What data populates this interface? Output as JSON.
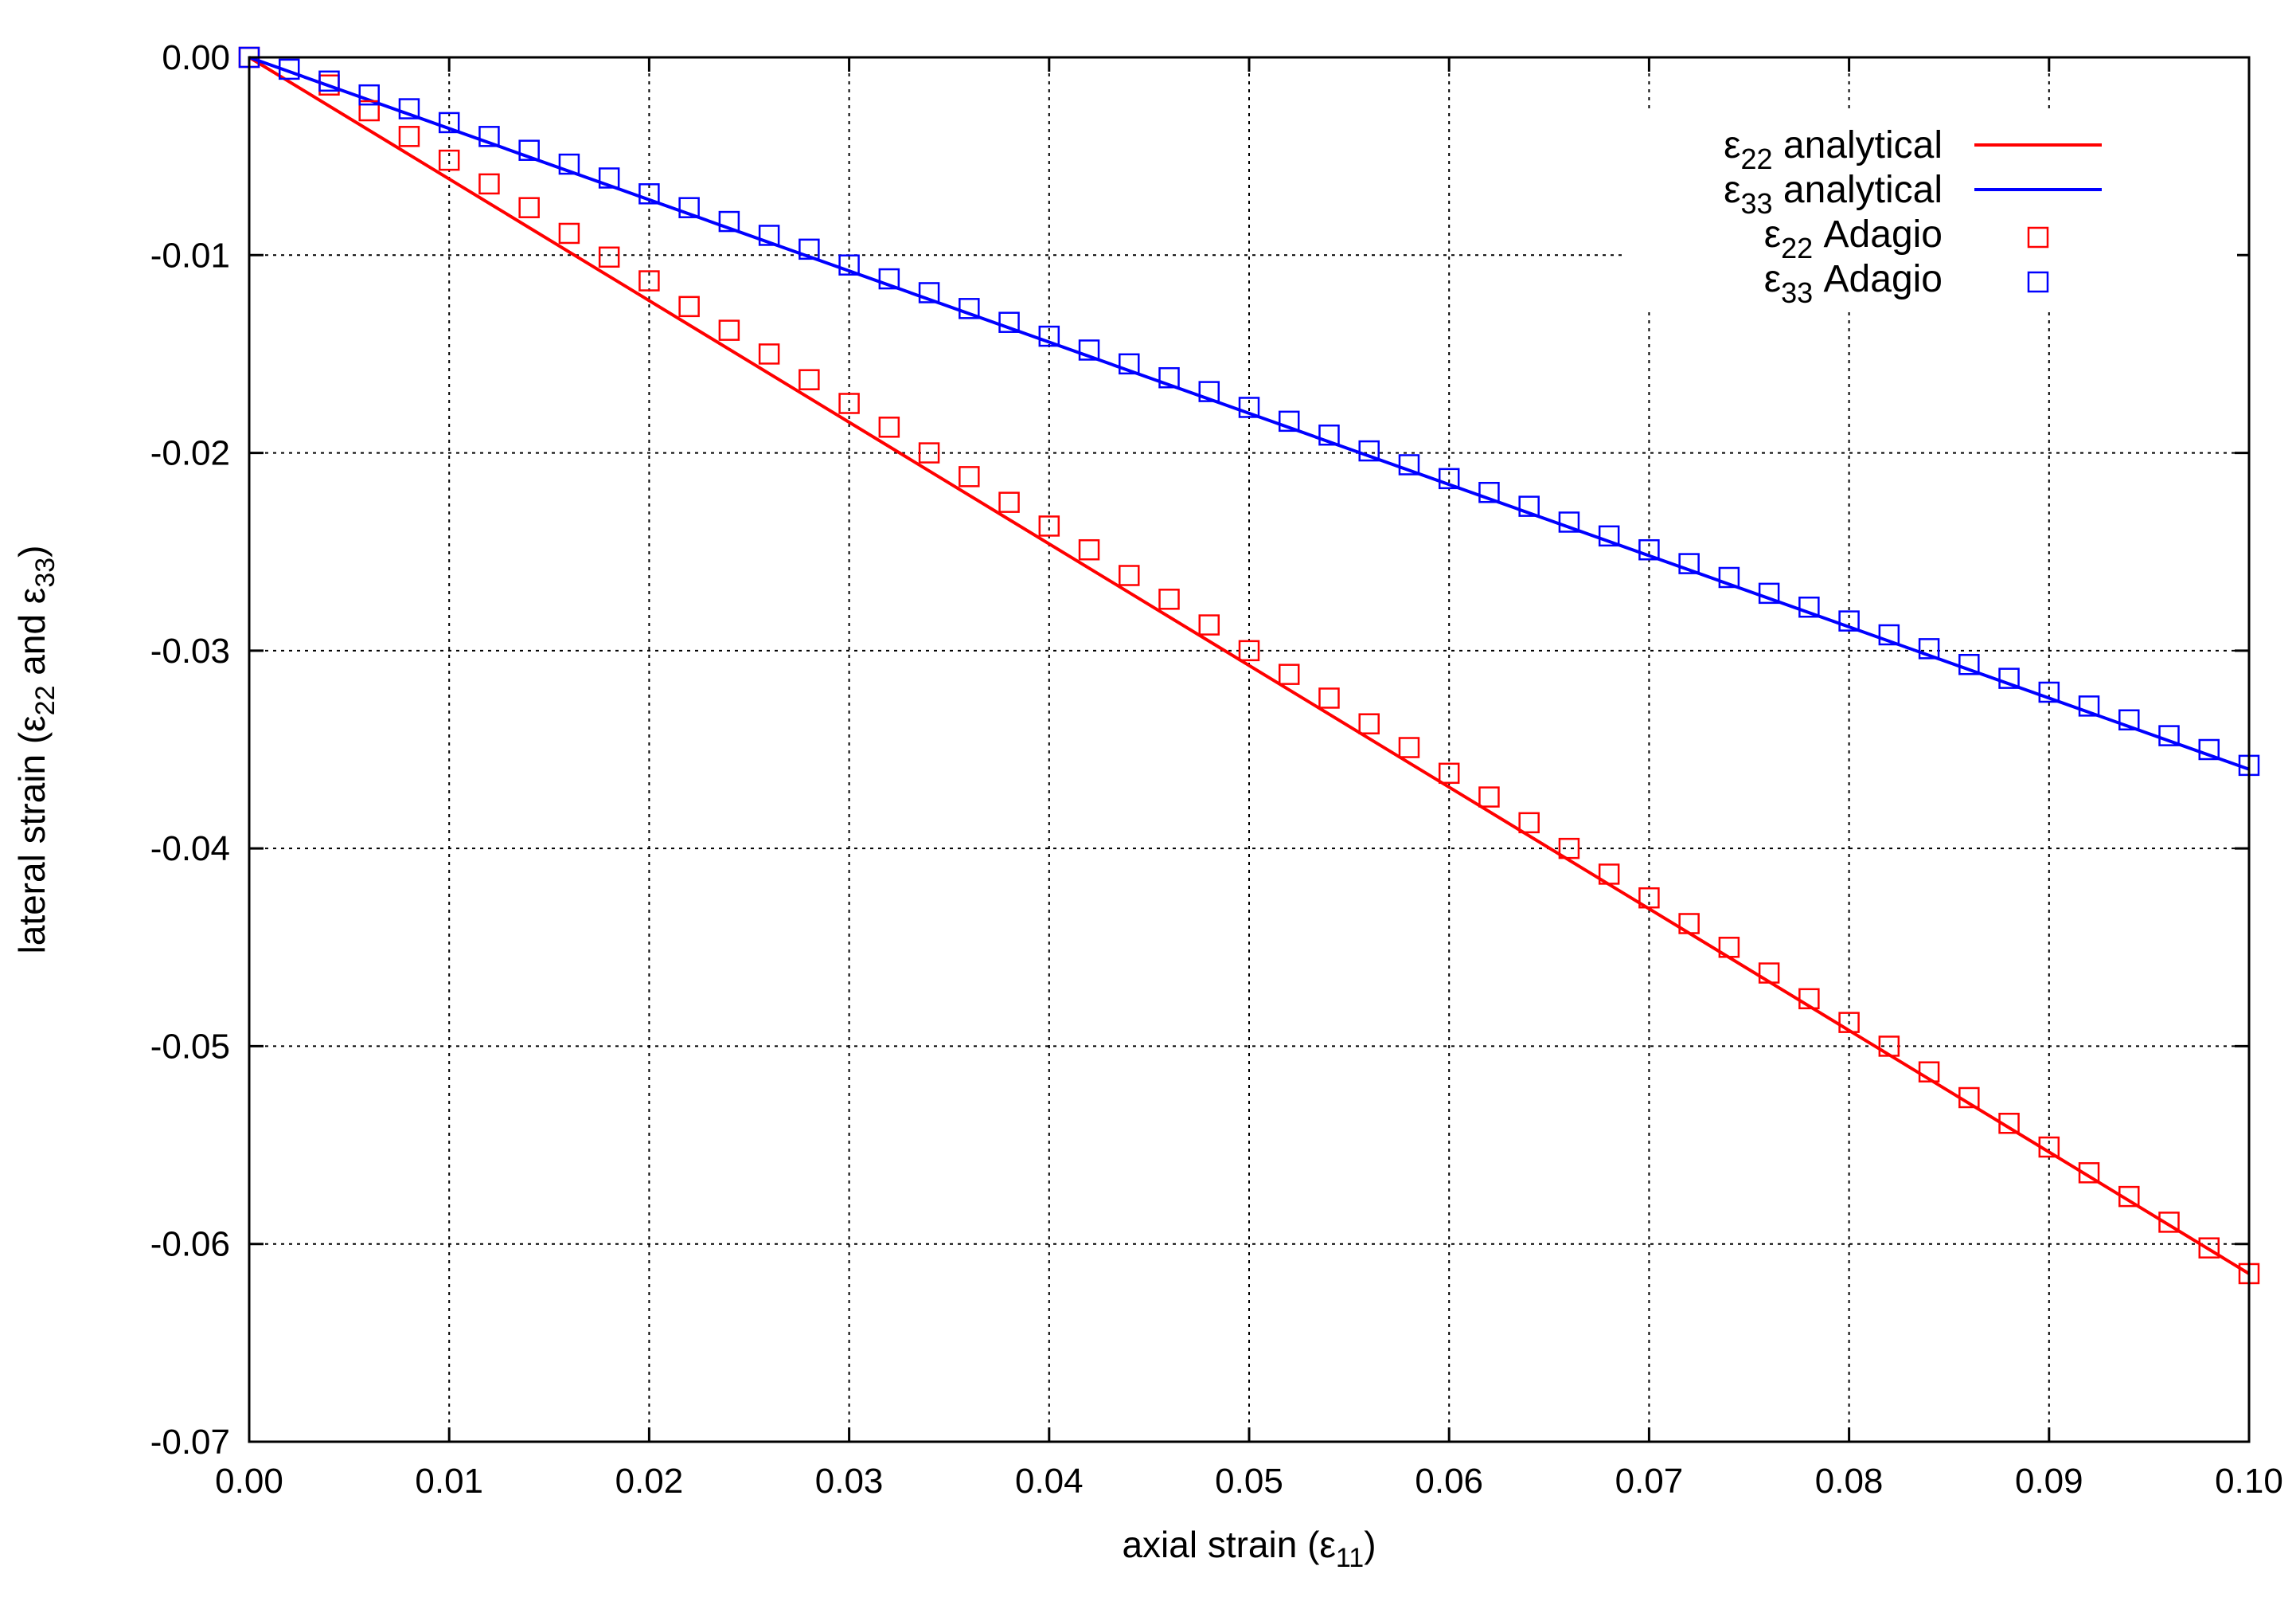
{
  "chart_data": {
    "type": "line",
    "xlabel": {
      "prefix": "axial strain (ε",
      "sub": "11",
      "suffix": ")"
    },
    "ylabel": {
      "p1": "lateral strain (ε",
      "s1": "22",
      "p2": " and ε",
      "s2": "33",
      "p3": ")"
    },
    "xlim": [
      0,
      0.1
    ],
    "ylim": [
      -0.07,
      0
    ],
    "x_ticks": [
      "0.00",
      "0.01",
      "0.02",
      "0.03",
      "0.04",
      "0.05",
      "0.06",
      "0.07",
      "0.08",
      "0.09",
      "0.10"
    ],
    "y_ticks": [
      "0.00",
      "-0.01",
      "-0.02",
      "-0.03",
      "-0.04",
      "-0.05",
      "-0.06",
      "-0.07"
    ],
    "grid": true,
    "legend_position": "top-right",
    "series": [
      {
        "label_base": "ε",
        "label_sub": "22",
        "label_text": " analytical",
        "style": "line",
        "color": "#ff0000",
        "x": [
          0,
          0.1
        ],
        "y": [
          0,
          -0.0615
        ]
      },
      {
        "label_base": "ε",
        "label_sub": "33",
        "label_text": " analytical",
        "style": "line",
        "color": "#0000ff",
        "x": [
          0,
          0.1
        ],
        "y": [
          0,
          -0.036
        ]
      },
      {
        "label_base": "ε",
        "label_sub": "22",
        "label_text": " Adagio",
        "style": "square-markers",
        "color": "#ff0000",
        "x": [
          0,
          0.004,
          0.006,
          0.008,
          0.01,
          0.012,
          0.014,
          0.016,
          0.018,
          0.02,
          0.022,
          0.024,
          0.026,
          0.028,
          0.03,
          0.032,
          0.034,
          0.036,
          0.038,
          0.04,
          0.042,
          0.044,
          0.046,
          0.048,
          0.05,
          0.052,
          0.054,
          0.056,
          0.058,
          0.06,
          0.062,
          0.064,
          0.066,
          0.068,
          0.07,
          0.072,
          0.074,
          0.076,
          0.078,
          0.08,
          0.082,
          0.084,
          0.086,
          0.088,
          0.09,
          0.092,
          0.094,
          0.096,
          0.098,
          0.1
        ],
        "y": [
          0,
          -0.0014,
          -0.0027,
          -0.004,
          -0.0052,
          -0.0064,
          -0.0076,
          -0.0089,
          -0.0101,
          -0.0113,
          -0.0126,
          -0.0138,
          -0.015,
          -0.0163,
          -0.0175,
          -0.0187,
          -0.02,
          -0.0212,
          -0.0225,
          -0.0237,
          -0.0249,
          -0.0262,
          -0.0274,
          -0.0287,
          -0.03,
          -0.0312,
          -0.0324,
          -0.0337,
          -0.0349,
          -0.0362,
          -0.0374,
          -0.0387,
          -0.04,
          -0.0413,
          -0.0425,
          -0.0438,
          -0.045,
          -0.0463,
          -0.0476,
          -0.0488,
          -0.05,
          -0.0513,
          -0.0526,
          -0.0539,
          -0.0551,
          -0.0564,
          -0.0576,
          -0.0589,
          -0.0602,
          -0.0615
        ]
      },
      {
        "label_base": "ε",
        "label_sub": "33",
        "label_text": " Adagio",
        "style": "square-markers",
        "color": "#0000ff",
        "x": [
          0,
          0.002,
          0.004,
          0.006,
          0.008,
          0.01,
          0.012,
          0.014,
          0.016,
          0.018,
          0.02,
          0.022,
          0.024,
          0.026,
          0.028,
          0.03,
          0.032,
          0.034,
          0.036,
          0.038,
          0.04,
          0.042,
          0.044,
          0.046,
          0.048,
          0.05,
          0.052,
          0.054,
          0.056,
          0.058,
          0.06,
          0.062,
          0.064,
          0.066,
          0.068,
          0.07,
          0.072,
          0.074,
          0.076,
          0.078,
          0.08,
          0.082,
          0.084,
          0.086,
          0.088,
          0.09,
          0.092,
          0.094,
          0.096,
          0.098,
          0.1
        ],
        "y": [
          0,
          -0.0006,
          -0.0012,
          -0.0019,
          -0.0026,
          -0.0033,
          -0.004,
          -0.0047,
          -0.0054,
          -0.0061,
          -0.0069,
          -0.0076,
          -0.0083,
          -0.009,
          -0.0097,
          -0.0105,
          -0.0112,
          -0.0119,
          -0.0127,
          -0.0134,
          -0.0141,
          -0.0148,
          -0.0155,
          -0.0162,
          -0.0169,
          -0.0177,
          -0.0184,
          -0.0191,
          -0.0199,
          -0.0206,
          -0.0213,
          -0.022,
          -0.0227,
          -0.0235,
          -0.0242,
          -0.0249,
          -0.0256,
          -0.0263,
          -0.0271,
          -0.0278,
          -0.0285,
          -0.0292,
          -0.0299,
          -0.0307,
          -0.0314,
          -0.0321,
          -0.0328,
          -0.0335,
          -0.0343,
          -0.035,
          -0.0358
        ]
      }
    ]
  }
}
